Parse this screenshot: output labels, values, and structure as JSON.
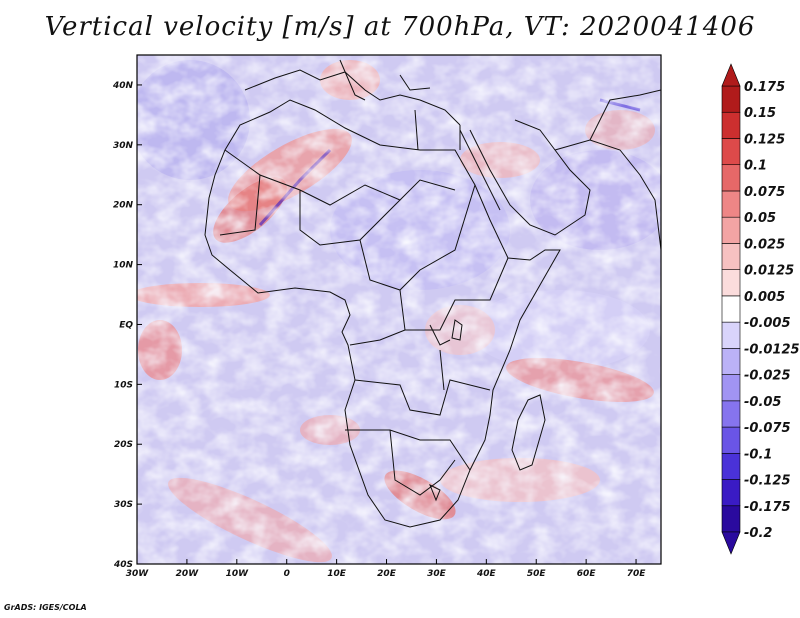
{
  "title": "Vertical velocity [m/s] at 700hPa, VT: 2020041406",
  "credit": "GrADS: IGES/COLA",
  "map": {
    "projection": "lat-lon",
    "lon_range": [
      -30,
      75
    ],
    "lat_range": [
      -40,
      45
    ],
    "field": "vertical velocity at 700hPa",
    "units": "m/s",
    "x_ticks": [
      {
        "lon": -30,
        "label": "30W"
      },
      {
        "lon": -20,
        "label": "20W"
      },
      {
        "lon": -10,
        "label": "10W"
      },
      {
        "lon": 0,
        "label": "0"
      },
      {
        "lon": 10,
        "label": "10E"
      },
      {
        "lon": 20,
        "label": "20E"
      },
      {
        "lon": 30,
        "label": "30E"
      },
      {
        "lon": 40,
        "label": "40E"
      },
      {
        "lon": 50,
        "label": "50E"
      },
      {
        "lon": 60,
        "label": "60E"
      },
      {
        "lon": 70,
        "label": "70E"
      }
    ],
    "y_ticks": [
      {
        "lat": 40,
        "label": "40N"
      },
      {
        "lat": 30,
        "label": "30N"
      },
      {
        "lat": 20,
        "label": "20N"
      },
      {
        "lat": 10,
        "label": "10N"
      },
      {
        "lat": 0,
        "label": "EQ"
      },
      {
        "lat": -10,
        "label": "10S"
      },
      {
        "lat": -20,
        "label": "20S"
      },
      {
        "lat": -30,
        "label": "30S"
      },
      {
        "lat": -40,
        "label": "40S"
      }
    ]
  },
  "colorbar": {
    "colors": [
      "#2a0a9e",
      "#3a1bc4",
      "#4a32d8",
      "#6a55e6",
      "#8674ee",
      "#a194f3",
      "#bbb2f7",
      "#d9d4fb",
      "#ffffff",
      "#fbdcdc",
      "#f7c1c1",
      "#f3a4a4",
      "#ee8686",
      "#e66868",
      "#dd4a4a",
      "#cc2f2f",
      "#b01b1b"
    ],
    "tick_labels": [
      "-0.2",
      "-0.175",
      "-0.125",
      "-0.1",
      "-0.075",
      "-0.05",
      "-0.025",
      "-0.0125",
      "-0.005",
      "0.005",
      "0.0125",
      "0.025",
      "0.05",
      "0.075",
      "0.1",
      "0.125",
      "0.15",
      "0.175"
    ]
  }
}
